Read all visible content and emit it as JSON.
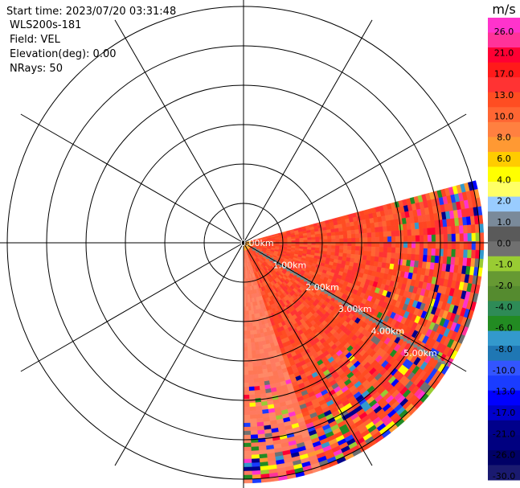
{
  "info": {
    "start_time": "Start time: 2023/07/20 03:31:48",
    "instrument": "WLS200s-181",
    "field": "Field: VEL",
    "elevation": "Elevation(deg): 0.00",
    "nrays": "NRays: 50"
  },
  "range_labels": [
    "0.00km",
    "1.00km",
    "2.00km",
    "3.00km",
    "4.00km",
    "5.00km"
  ],
  "colorbar": {
    "unit": "m/s",
    "ticks": [
      "26.0",
      "21.0",
      "17.0",
      "13.0",
      "10.0",
      "8.0",
      "6.0",
      "4.0",
      "2.0",
      "1.0",
      "0.0",
      "-1.0",
      "-2.0",
      "-4.0",
      "-6.0",
      "-8.0",
      "-10.0",
      "-13.0",
      "-17.0",
      "-21.0",
      "-26.0",
      "-30.0"
    ],
    "colors": [
      "#ff33cc",
      "#ff3399",
      "#ff0033",
      "#ff1a1a",
      "#ff3333",
      "#ff4d22",
      "#ff6633",
      "#ff8040",
      "#ff9933",
      "#ffcc00",
      "#ffff00",
      "#ffff66",
      "#99ccff",
      "#7a8a9a",
      "#5a5a5a",
      "#707070",
      "#99cc33",
      "#669933",
      "#558b2f",
      "#2e8b57",
      "#228b22",
      "#3399cc",
      "#1f77b4",
      "#3355ff",
      "#1a3cff",
      "#0000ff",
      "#0000cc",
      "#00008b",
      "#000080",
      "#000066",
      "#1a1a70"
    ]
  }
}
